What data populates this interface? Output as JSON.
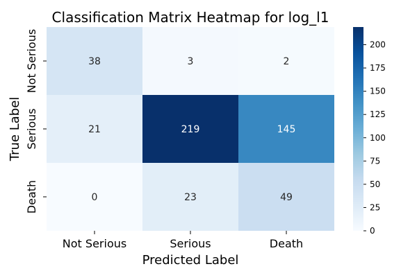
{
  "chart_data": {
    "type": "heatmap",
    "title": "Classification Matrix Heatmap for log_l1",
    "xlabel": "Predicted Label",
    "ylabel": "True Label",
    "x_categories": [
      "Not Serious",
      "Serious",
      "Death"
    ],
    "y_categories": [
      "Not Serious",
      "Serious",
      "Death"
    ],
    "values": [
      [
        38,
        3,
        2
      ],
      [
        21,
        219,
        145
      ],
      [
        0,
        23,
        49
      ]
    ],
    "colorbar": {
      "colormap": "Blues",
      "range": [
        0,
        219
      ],
      "ticks": [
        0,
        25,
        50,
        75,
        100,
        125,
        150,
        175,
        200
      ]
    },
    "annotation_colors": {
      "dark_text": "#262626",
      "light_text": "#ffffff"
    }
  }
}
